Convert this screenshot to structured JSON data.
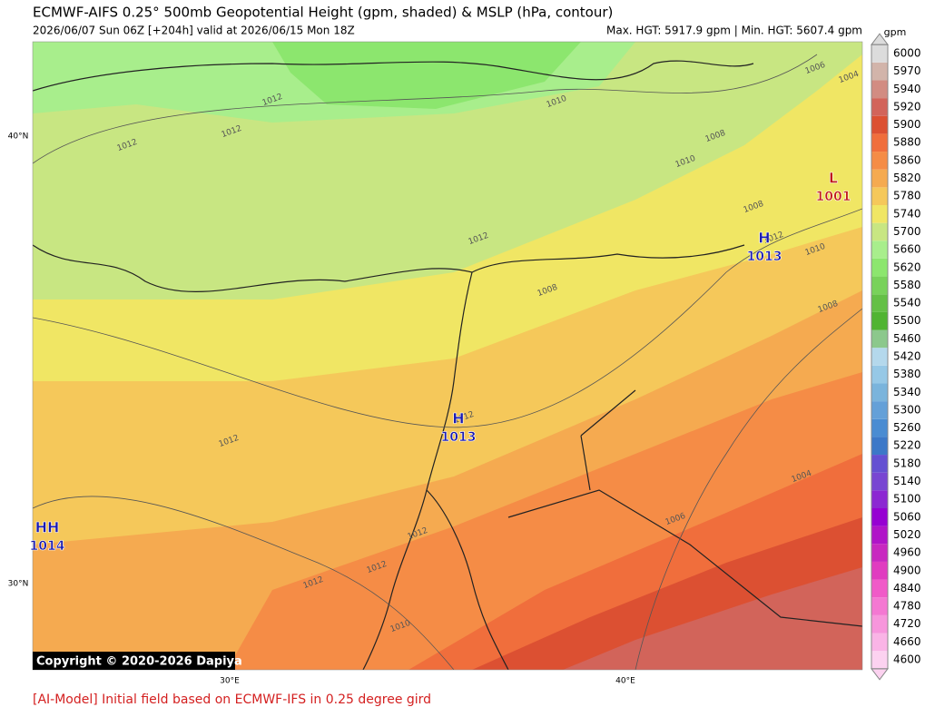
{
  "header": {
    "title": "ECMWF-AIFS 0.25° 500mb Geopotential Height (gpm, shaded) & MSLP (hPa, contour)",
    "subtitle": "2026/06/07 Sun 06Z [+204h] valid at 2026/06/15 Mon 18Z",
    "stats": "Max. HGT: 5917.9 gpm | Min. HGT: 5607.4 gpm"
  },
  "colorbar": {
    "unit": "gpm",
    "levels": [
      4600,
      4660,
      4720,
      4780,
      4840,
      4900,
      4960,
      5020,
      5060,
      5100,
      5140,
      5180,
      5220,
      5260,
      5300,
      5340,
      5380,
      5420,
      5460,
      5500,
      5540,
      5580,
      5620,
      5660,
      5700,
      5740,
      5780,
      5820,
      5860,
      5880,
      5900,
      5920,
      5940,
      5970,
      6000
    ],
    "colors": [
      "#fcd2f0",
      "#fab4e6",
      "#f796dc",
      "#f478d2",
      "#f05ac8",
      "#e03cc0",
      "#c828c0",
      "#b014c8",
      "#9600d2",
      "#8c28d2",
      "#7846d2",
      "#6450d2",
      "#3c78c8",
      "#4a8cd2",
      "#64a0d8",
      "#7ab4dc",
      "#96c8e6",
      "#b4d8ec",
      "#8cc88c",
      "#50b432",
      "#64c046",
      "#78d25a",
      "#8ce66e",
      "#a8ee8c",
      "#c8e682",
      "#f0e664",
      "#f5c85a",
      "#f5aa50",
      "#f58c46",
      "#f06e3c",
      "#dc5032",
      "#d2645a",
      "#d28c82",
      "#d2b4aa",
      "#dcdcdc"
    ]
  },
  "axes": {
    "lat_labels": [
      "40°N",
      "30°N"
    ],
    "lon_labels": [
      "30°E",
      "40°E"
    ]
  },
  "pressure_centers": [
    {
      "symbol": "L",
      "value": 1001
    },
    {
      "symbol": "H",
      "value": 1013
    },
    {
      "symbol": "H",
      "value": 1013
    },
    {
      "symbol": "HH",
      "value": 1014
    }
  ],
  "contour_labels": [
    1012,
    1012,
    1012,
    1010,
    1008,
    1010,
    1006,
    1004,
    1008,
    1012,
    1010,
    1012,
    1008,
    1008,
    1012,
    1012,
    1004,
    1006,
    1012,
    1012,
    1012,
    1010
  ],
  "copyright": "Copyright © 2020-2026 Dapiya",
  "footer": "[AI-Model] Initial field based on ECMWF-IFS in 0.25 degree gird"
}
